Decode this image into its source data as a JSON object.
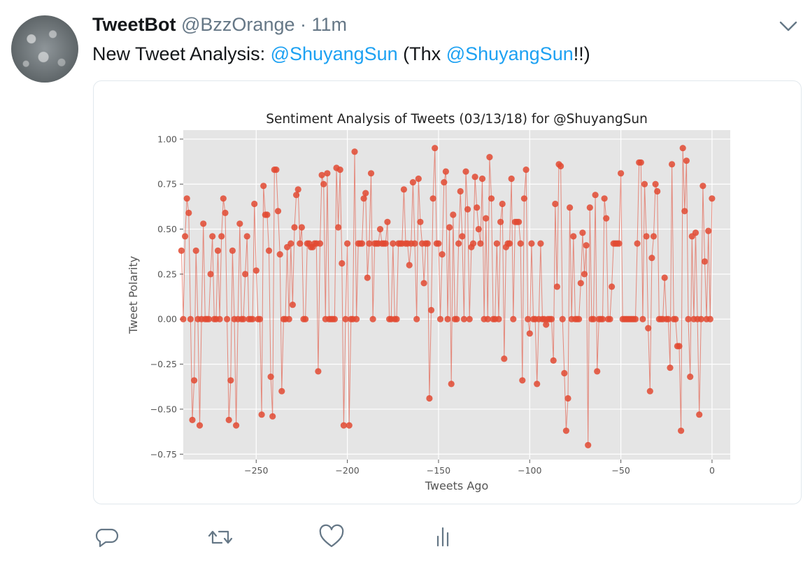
{
  "tweet": {
    "author_name": "TweetBot",
    "handle": "@BzzOrange",
    "separator": "·",
    "time": "11m",
    "text_prefix": "New Tweet Analysis: ",
    "mention_1": "@ShuyangSun",
    "text_middle": " (Thx ",
    "mention_2": "@ShuyangSun",
    "text_suffix": "!!)"
  },
  "icons": {
    "avatar": "avatar-image",
    "menu": "chevron-down-icon",
    "reply": "reply-icon",
    "retweet": "retweet-icon",
    "like": "heart-icon",
    "analytics": "analytics-icon"
  },
  "colors": {
    "mention": "#1da1f2",
    "secondary_text": "#657786",
    "plot_background": "#e5e5e5",
    "series": "#e24a33"
  },
  "chart_data": {
    "type": "line",
    "title": "Sentiment Analysis of Tweets (03/13/18) for @ShuyangSun",
    "xlabel": "Tweets Ago",
    "ylabel": "Tweet Polarity",
    "xlim": [
      -290,
      10
    ],
    "ylim": [
      -0.78,
      1.05
    ],
    "xticks": [
      -250,
      -200,
      -150,
      -100,
      -50,
      0
    ],
    "yticks": [
      -0.75,
      -0.5,
      -0.25,
      0.0,
      0.25,
      0.5,
      0.75,
      1.0
    ],
    "xtick_labels": [
      "−250",
      "−200",
      "−150",
      "−100",
      "−50",
      "0"
    ],
    "ytick_labels": [
      "−0.75",
      "−0.50",
      "−0.25",
      "0.00",
      "0.25",
      "0.50",
      "0.75",
      "1.00"
    ],
    "grid": true,
    "markers": true,
    "series": [
      {
        "values": [
          0.38,
          0.0,
          0.46,
          0.67,
          0.59,
          0.0,
          -0.56,
          -0.34,
          0.38,
          0.0,
          -0.59,
          0.0,
          0.53,
          0.0,
          0.0,
          0.0,
          0.25,
          0.46,
          0.0,
          0.0,
          0.38,
          0.0,
          0.46,
          0.67,
          0.59,
          0.0,
          -0.56,
          -0.34,
          0.38,
          0.0,
          -0.59,
          0.0,
          0.53,
          0.0,
          0.0,
          0.25,
          0.46,
          0.0,
          0.0,
          0.0,
          0.64,
          0.27,
          0.0,
          0.0,
          -0.53,
          0.74,
          0.58,
          0.58,
          0.38,
          -0.32,
          -0.54,
          0.83,
          0.83,
          0.6,
          0.36,
          -0.4,
          0.0,
          0.0,
          0.4,
          0.0,
          0.42,
          0.08,
          0.51,
          0.69,
          0.72,
          0.42,
          0.51,
          0.0,
          0.0,
          0.42,
          0.42,
          0.4,
          0.4,
          0.42,
          0.42,
          -0.29,
          0.42,
          0.8,
          0.75,
          0.0,
          0.81,
          0.0,
          0.0,
          0.0,
          0.0,
          0.84,
          0.51,
          0.83,
          0.31,
          -0.59,
          0.0,
          0.42,
          -0.59,
          0.0,
          0.0,
          0.93,
          0.0,
          0.42,
          0.42,
          0.42,
          0.67,
          0.7,
          0.23,
          0.42,
          0.81,
          0.0,
          0.42,
          0.42,
          0.42,
          0.5,
          0.42,
          0.42,
          0.42,
          0.54,
          0.0,
          0.0,
          0.42,
          0.0,
          0.0,
          0.42,
          0.42,
          0.42,
          0.72,
          0.42,
          0.42,
          0.3,
          0.42,
          0.76,
          0.42,
          0.0,
          0.78,
          0.54,
          0.42,
          0.2,
          0.42,
          0.42,
          -0.44,
          0.05,
          0.67,
          0.95,
          0.42,
          0.42,
          0.0,
          0.36,
          0.76,
          0.82,
          0.0,
          0.51,
          -0.36,
          0.58,
          0.0,
          0.0,
          0.42,
          0.71,
          0.46,
          0.0,
          0.82,
          0.61,
          0.0,
          0.4,
          0.42,
          0.79,
          0.62,
          0.5,
          0.42,
          0.78,
          0.0,
          0.56,
          0.0,
          0.9,
          0.67,
          0.0,
          0.0,
          0.42,
          0.0,
          0.54,
          0.64,
          -0.22,
          0.4,
          0.42,
          0.42,
          0.78,
          0.0,
          0.54,
          0.54,
          0.54,
          0.42,
          -0.34,
          0.67,
          0.83,
          0.0,
          -0.08,
          0.42,
          0.0,
          0.0,
          -0.36,
          0.0,
          0.42,
          0.0,
          0.0,
          -0.03,
          0.0,
          0.0,
          0.0,
          -0.23,
          0.64,
          0.18,
          0.86,
          0.85,
          0.0,
          -0.3,
          -0.62,
          -0.44,
          0.62,
          0.0,
          0.46,
          0.0,
          0.0,
          0.0,
          0.2,
          0.48,
          0.25,
          0.41,
          -0.7,
          0.62,
          0.0,
          0.0,
          0.69,
          -0.29,
          0.0,
          0.0,
          0.0,
          0.67,
          0.56,
          0.0,
          0.0,
          0.18,
          0.42,
          0.42,
          0.42,
          0.42,
          0.81,
          0.0,
          0.0,
          0.0,
          0.0,
          0.0,
          0.0,
          0.0,
          0.0,
          0.42,
          0.87,
          0.87,
          0.0,
          0.75,
          0.46,
          -0.05,
          -0.4,
          0.34,
          0.46,
          0.75,
          0.71,
          0.0,
          0.0,
          0.0,
          0.23,
          0.0,
          0.0,
          -0.27,
          0.86,
          0.0,
          0.0,
          -0.15,
          -0.15,
          -0.62,
          0.95,
          0.6,
          0.88,
          0.0,
          -0.32,
          0.46,
          0.0,
          0.48,
          0.0,
          -0.53,
          0.0,
          0.74,
          0.32,
          0.0,
          0.49,
          0.0,
          0.67
        ]
      }
    ]
  }
}
